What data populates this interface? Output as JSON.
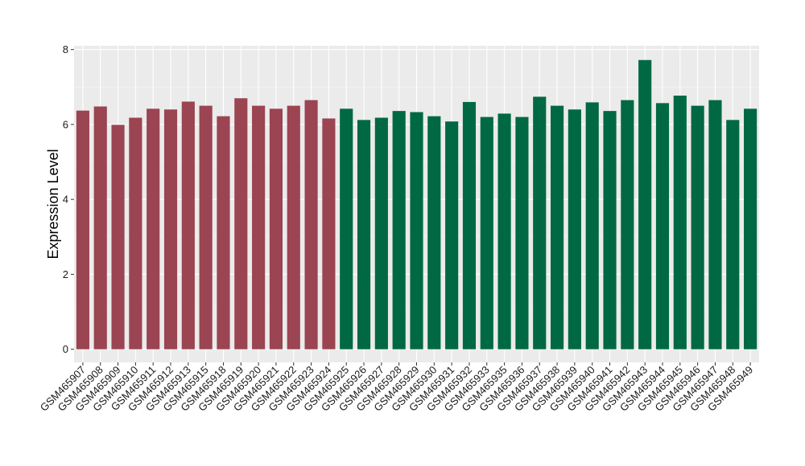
{
  "chart_data": {
    "type": "bar",
    "title": "",
    "xlabel": "",
    "ylabel": "Expression Level",
    "ylim": [
      -0.35,
      8.1
    ],
    "yticks": [
      0,
      2,
      4,
      6,
      8
    ],
    "grid": true,
    "legend": "none",
    "background": "#ebebeb",
    "gridline_color": "#ffffff",
    "group_colors": [
      "#9b4452",
      "#006943"
    ],
    "categories": [
      "GSM465907",
      "GSM465908",
      "GSM465909",
      "GSM465910",
      "GSM465911",
      "GSM465912",
      "GSM465913",
      "GSM465915",
      "GSM465918",
      "GSM465919",
      "GSM465920",
      "GSM465921",
      "GSM465922",
      "GSM465923",
      "GSM465924",
      "GSM465925",
      "GSM465926",
      "GSM465927",
      "GSM465928",
      "GSM465929",
      "GSM465930",
      "GSM465931",
      "GSM465932",
      "GSM465933",
      "GSM465935",
      "GSM465936",
      "GSM465937",
      "GSM465938",
      "GSM465939",
      "GSM465940",
      "GSM465941",
      "GSM465942",
      "GSM465943",
      "GSM465944",
      "GSM465945",
      "GSM465946",
      "GSM465947",
      "GSM465948",
      "GSM465949"
    ],
    "values": [
      6.37,
      6.48,
      5.99,
      6.18,
      6.42,
      6.4,
      6.61,
      6.5,
      6.22,
      6.7,
      6.5,
      6.42,
      6.5,
      6.65,
      6.16,
      6.42,
      6.12,
      6.18,
      6.36,
      6.33,
      6.22,
      6.08,
      6.6,
      6.2,
      6.29,
      6.2,
      6.74,
      6.5,
      6.4,
      6.59,
      6.36,
      6.65,
      7.72,
      6.57,
      6.77,
      6.5,
      6.65,
      6.12,
      6.42
    ],
    "groups": [
      0,
      0,
      0,
      0,
      0,
      0,
      0,
      0,
      0,
      0,
      0,
      0,
      0,
      0,
      0,
      1,
      1,
      1,
      1,
      1,
      1,
      1,
      1,
      1,
      1,
      1,
      1,
      1,
      1,
      1,
      1,
      1,
      1,
      1,
      1,
      1,
      1,
      1,
      1
    ]
  }
}
